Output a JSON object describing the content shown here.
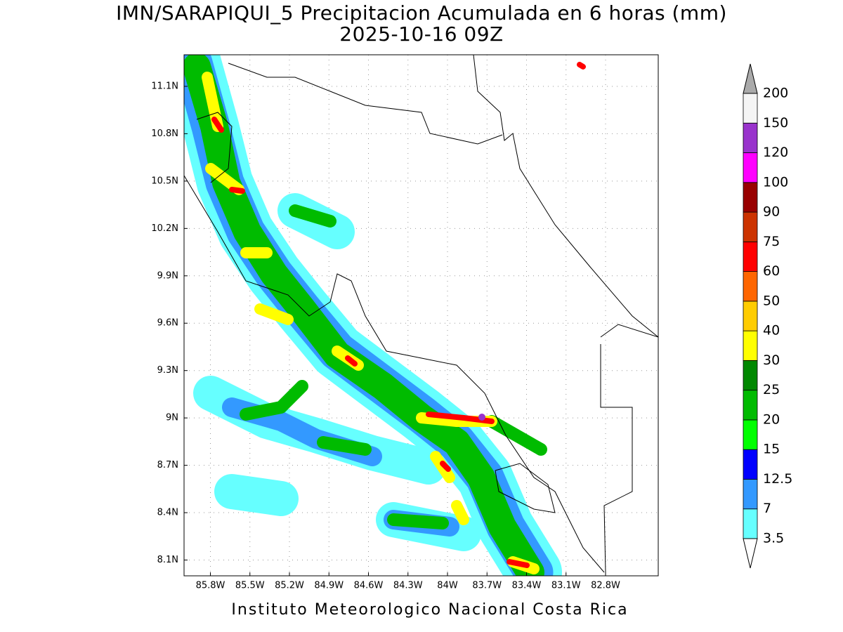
{
  "title": "IMN/SARAPIQUI_5 Precipitacion Acumulada en 6 horas (mm)",
  "subtitle": "2025-10-16 09Z",
  "footer": "Instituto Meteorologico Nacional Costa Rica",
  "map": {
    "xlim": [
      -86.0,
      -82.4
    ],
    "ylim": [
      8.0,
      11.3
    ],
    "xticks": [
      {
        "value": -85.8,
        "label": "85.8W"
      },
      {
        "value": -85.5,
        "label": "85.5W"
      },
      {
        "value": -85.2,
        "label": "85.2W"
      },
      {
        "value": -84.9,
        "label": "84.9W"
      },
      {
        "value": -84.6,
        "label": "84.6W"
      },
      {
        "value": -84.3,
        "label": "84.3W"
      },
      {
        "value": -84.0,
        "label": "84W"
      },
      {
        "value": -83.7,
        "label": "83.7W"
      },
      {
        "value": -83.4,
        "label": "83.4W"
      },
      {
        "value": -83.1,
        "label": "83.1W"
      },
      {
        "value": -82.8,
        "label": "82.8W"
      }
    ],
    "yticks": [
      {
        "value": 8.1,
        "label": "8.1N"
      },
      {
        "value": 8.4,
        "label": "8.4N"
      },
      {
        "value": 8.7,
        "label": "8.7N"
      },
      {
        "value": 9.0,
        "label": "9N"
      },
      {
        "value": 9.3,
        "label": "9.3N"
      },
      {
        "value": 9.6,
        "label": "9.6N"
      },
      {
        "value": 9.9,
        "label": "9.9N"
      },
      {
        "value": 10.2,
        "label": "10.2N"
      },
      {
        "value": 10.5,
        "label": "10.5N"
      },
      {
        "value": 10.8,
        "label": "10.8N"
      },
      {
        "value": 11.1,
        "label": "11.1N"
      }
    ],
    "grid": true
  },
  "colorbar": {
    "levels": [
      3.5,
      7,
      12.5,
      15,
      20,
      25,
      30,
      40,
      50,
      60,
      75,
      90,
      100,
      120,
      150,
      200
    ],
    "colors": [
      "#66ffff",
      "#3399ff",
      "#0000ff",
      "#00ff00",
      "#00bb00",
      "#008800",
      "#ffff00",
      "#ffcc00",
      "#ff6600",
      "#ff0000",
      "#cc3300",
      "#990000",
      "#ff00ff",
      "#9933cc",
      "#f5f5f5"
    ],
    "under_color": "#ffffff",
    "over_color": "#aaaaaa"
  }
}
